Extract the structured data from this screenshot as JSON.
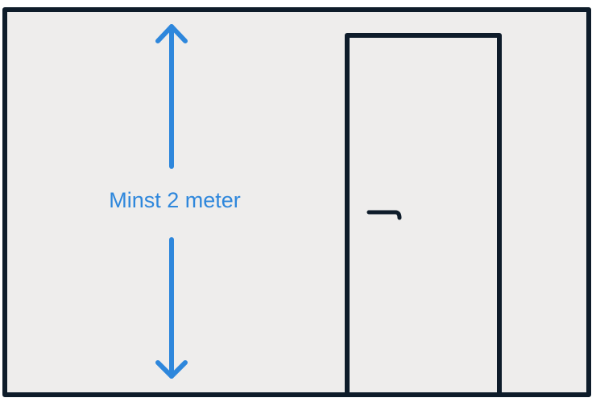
{
  "diagram": {
    "dimension_label": "Minst 2 meter",
    "colors": {
      "room_fill": "#EEEDEC",
      "outline": "#0E1C2A",
      "dimension": "#2E87DC"
    }
  }
}
